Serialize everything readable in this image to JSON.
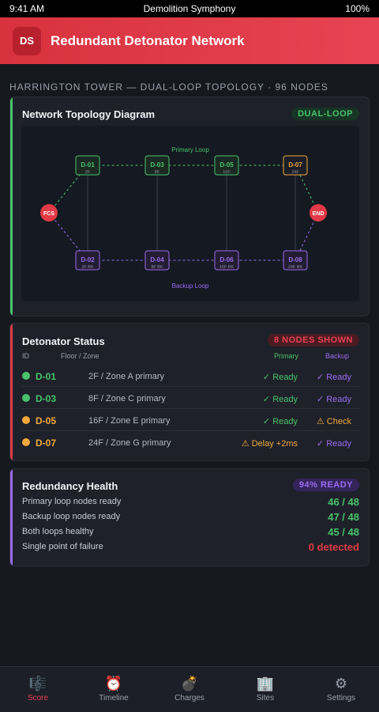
{
  "status_bar": {
    "time": "9:41 AM",
    "title": "Demolition Symphony",
    "battery": "100%"
  },
  "app": {
    "logo": "DS",
    "title": "Redundant Detonator Network"
  },
  "subtitle": "HARRINGTON TOWER — DUAL-LOOP TOPOLOGY · 96 NODES",
  "topology": {
    "title": "Network Topology Diagram",
    "badge": "DUAL-LOOP",
    "primary_label": "Primary Loop",
    "backup_label": "Backup Loop",
    "start": "FCS",
    "end": "END",
    "primary_nodes": [
      {
        "id": "D-01",
        "sub": "2F",
        "state": "ready"
      },
      {
        "id": "D-03",
        "sub": "8F",
        "state": "ready"
      },
      {
        "id": "D-05",
        "sub": "16F",
        "state": "ready"
      },
      {
        "id": "D-07",
        "sub": "24F",
        "state": "warn"
      }
    ],
    "backup_nodes": [
      {
        "id": "D-02",
        "sub": "2F BK"
      },
      {
        "id": "D-04",
        "sub": "8F BK"
      },
      {
        "id": "D-06",
        "sub": "16F BK"
      },
      {
        "id": "D-08",
        "sub": "24F BK"
      }
    ],
    "colors": {
      "primary": "#49c26b",
      "backup": "#9b6cf0",
      "warn": "#f2a93b",
      "terminal": "#e23a46"
    }
  },
  "status": {
    "title": "Detonator Status",
    "badge": "8 NODES SHOWN",
    "headers": {
      "id": "ID",
      "zone": "Floor / Zone",
      "primary": "Primary",
      "backup": "Backup"
    },
    "rows": [
      {
        "id": "D-01",
        "zone": "2F / Zone A primary",
        "primary": "✓ Ready",
        "backup": "✓ Ready",
        "level": "ok",
        "primary_level": "ok",
        "backup_level": "ok"
      },
      {
        "id": "D-03",
        "zone": "8F / Zone C primary",
        "primary": "✓ Ready",
        "backup": "✓ Ready",
        "level": "ok",
        "primary_level": "ok",
        "backup_level": "ok"
      },
      {
        "id": "D-05",
        "zone": "16F / Zone E primary",
        "primary": "✓ Ready",
        "backup": "⚠ Check",
        "level": "warn",
        "primary_level": "ok",
        "backup_level": "warn"
      },
      {
        "id": "D-07",
        "zone": "24F / Zone G primary",
        "primary": "⚠ Delay +2ms",
        "backup": "✓ Ready",
        "level": "warn",
        "primary_level": "warn",
        "backup_level": "ok"
      }
    ]
  },
  "health": {
    "title": "Redundancy Health",
    "badge": "94% READY",
    "items": [
      {
        "label": "Primary loop nodes ready",
        "value": "46 / 48",
        "level": "ok"
      },
      {
        "label": "Backup loop nodes ready",
        "value": "47 / 48",
        "level": "ok"
      },
      {
        "label": "Both loops healthy",
        "value": "45 / 48",
        "level": "ok"
      },
      {
        "label": "Single point of failure",
        "value": "0 detected",
        "level": "bad"
      }
    ]
  },
  "tabs": [
    {
      "label": "Score",
      "icon": "🎼",
      "icon_name": "score-icon",
      "active": true
    },
    {
      "label": "Timeline",
      "icon": "⏰",
      "icon_name": "timeline-icon",
      "active": false
    },
    {
      "label": "Charges",
      "icon": "💣",
      "icon_name": "charges-icon",
      "active": false
    },
    {
      "label": "Sites",
      "icon": "🏢",
      "icon_name": "sites-icon",
      "active": false
    },
    {
      "label": "Settings",
      "icon": "⚙",
      "icon_name": "settings-icon",
      "active": false
    }
  ]
}
